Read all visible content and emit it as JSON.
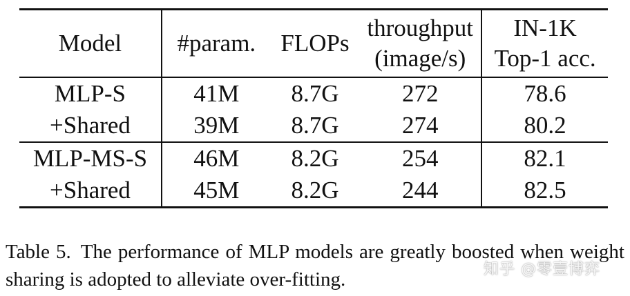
{
  "table": {
    "headers": {
      "model": "Model",
      "params": "#param.",
      "flops": "FLOPs",
      "throughput_line1": "throughput",
      "throughput_line2": "(image/s)",
      "acc_line1": "IN-1K",
      "acc_line2": "Top-1 acc."
    },
    "rows": [
      {
        "model": "MLP-S",
        "params": "41M",
        "flops": "8.7G",
        "throughput": "272",
        "acc": "78.6"
      },
      {
        "model": "+Shared",
        "params": "39M",
        "flops": "8.7G",
        "throughput": "274",
        "acc": "80.2"
      },
      {
        "model": "MLP-MS-S",
        "params": "46M",
        "flops": "8.2G",
        "throughput": "254",
        "acc": "82.1"
      },
      {
        "model": "+Shared",
        "params": "45M",
        "flops": "8.2G",
        "throughput": "244",
        "acc": "82.5"
      }
    ]
  },
  "caption": {
    "label": "Table 5.",
    "text": "The performance of MLP models are greatly boosted when weight sharing is adopted to alleviate over-fitting."
  },
  "watermark": "知乎 @零壹博弈"
}
